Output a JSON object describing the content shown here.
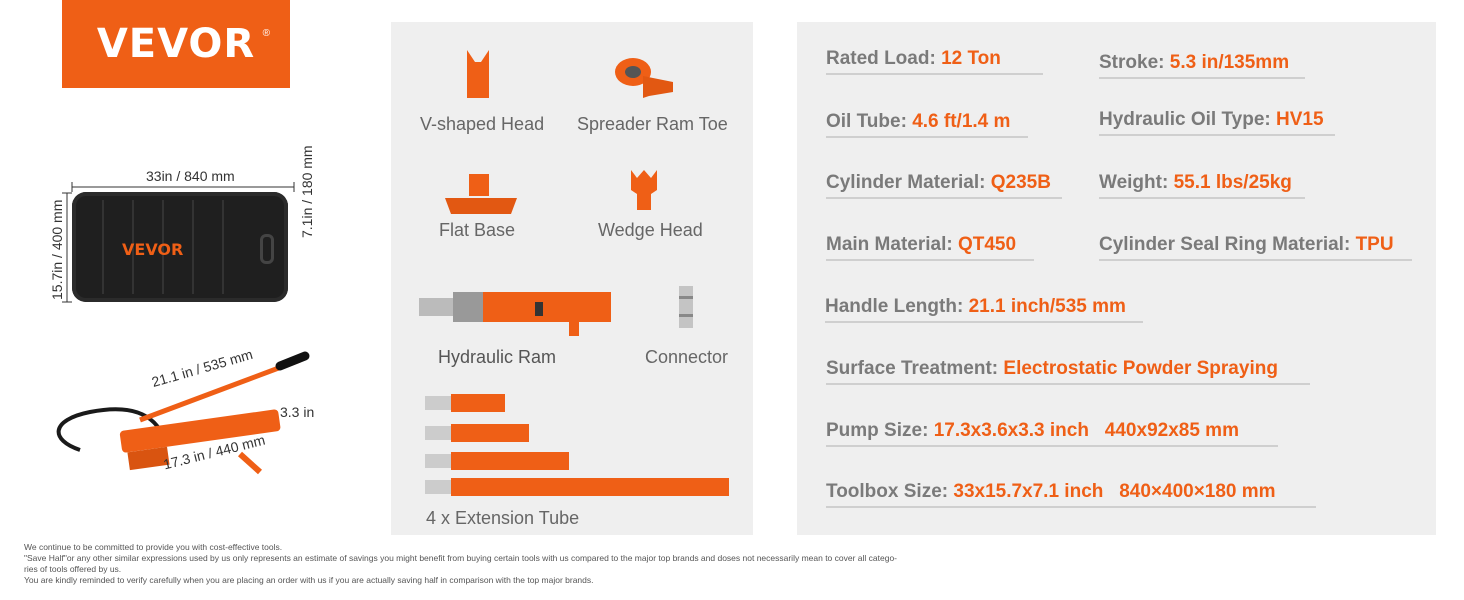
{
  "brand": {
    "logo_text": "VEVOR",
    "registered": "®",
    "accent": "#ef5f16"
  },
  "toolbox": {
    "width_label": "33in / 840 mm",
    "height_label": "15.7in / 400 mm",
    "depth_label": "7.1in / 180 mm",
    "case_brand": "VEVOR"
  },
  "pump": {
    "handle_label": "21.1 in / 535 mm",
    "length_label": "17.3 in / 440 mm",
    "height_label": "3.3 in"
  },
  "parts": {
    "v_head": "V-shaped Head",
    "spreader": "Spreader Ram Toe",
    "flat_base": "Flat Base",
    "wedge": "Wedge Head",
    "ram": "Hydraulic Ram",
    "connector": "Connector",
    "tubes": "4 x Extension Tube"
  },
  "specs": {
    "rated_load": {
      "k": "Rated Load:",
      "v": "12 Ton"
    },
    "stroke": {
      "k": "Stroke:",
      "v": "5.3 in/135mm"
    },
    "oil_tube": {
      "k": "Oil Tube:",
      "v": "4.6 ft/1.4 m"
    },
    "oil_type": {
      "k": "Hydraulic Oil Type:",
      "v": "HV15"
    },
    "cyl_mat": {
      "k": "Cylinder Material:",
      "v": "Q235B"
    },
    "weight": {
      "k": "Weight:",
      "v": "55.1 lbs/25kg"
    },
    "main_mat": {
      "k": "Main Material:",
      "v": "QT450"
    },
    "seal": {
      "k": "Cylinder Seal Ring Material:",
      "v": "TPU"
    },
    "handle": {
      "k": "Handle Length:",
      "v": "21.1 inch/535 mm"
    },
    "surface": {
      "k": "Surface Treatment:",
      "v": "Electrostatic Powder Spraying"
    },
    "pump_size": {
      "k": "Pump Size:",
      "v": "17.3x3.6x3.3 inch   440x92x85 mm"
    },
    "toolbox_size": {
      "k": "Toolbox Size:",
      "v": " 33x15.7x7.1 inch   840×400×180 mm"
    }
  },
  "footer": [
    "We continue to be committed to provide you with cost-effective tools.",
    "\"Save Half\"or any other similar expressions used by us only represents an estimate of savings you might benefit from buying certain tools with us compared to the major top brands and doses not necessarily mean to cover all catego-",
    "ries of tools offered by us.",
    "You are kindly reminded to verify carefully when you are placing an order with us if you are actually saving half in comparison with the top major brands."
  ]
}
